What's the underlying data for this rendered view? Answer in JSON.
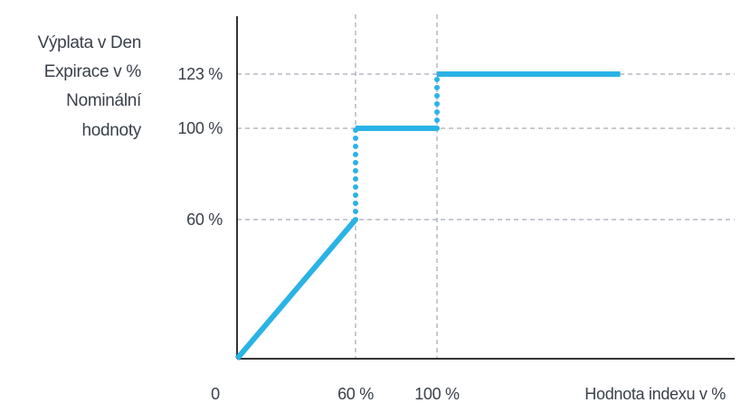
{
  "chart_data": {
    "type": "line",
    "ylabel": [
      "Výplata v Den",
      "Expirace v %",
      "Nominální",
      "hodnoty"
    ],
    "xlabel": "Hodnota indexu v %",
    "origin_label": "0",
    "x_ticks": [
      {
        "value": 60,
        "label": "60 %"
      },
      {
        "value": 100,
        "label": "100 %"
      }
    ],
    "y_ticks": [
      {
        "value": 60,
        "label": "60 %"
      },
      {
        "value": 100,
        "label": "100 %"
      },
      {
        "value": 123,
        "label": "123 %"
      }
    ],
    "xlim": [
      0,
      250
    ],
    "ylim": [
      0,
      155
    ],
    "grid": "dashed at tick values",
    "series": [
      {
        "segments": [
          {
            "style": "solid",
            "points": [
              [
                0,
                0
              ],
              [
                60,
                60
              ]
            ]
          },
          {
            "style": "dotted",
            "points": [
              [
                60,
                60
              ],
              [
                60,
                100
              ]
            ]
          },
          {
            "style": "solid",
            "points": [
              [
                60,
                100
              ],
              [
                100,
                100
              ]
            ]
          },
          {
            "style": "dotted",
            "points": [
              [
                100,
                100
              ],
              [
                100,
                123
              ]
            ]
          },
          {
            "style": "solid",
            "points": [
              [
                100,
                123
              ],
              [
                190,
                123
              ]
            ]
          }
        ]
      }
    ],
    "colors": {
      "line": "#29b3e6",
      "axis": "#333333",
      "grid": "#8f96a3"
    }
  }
}
